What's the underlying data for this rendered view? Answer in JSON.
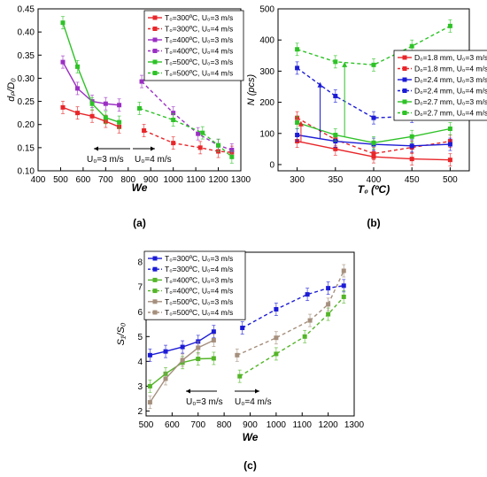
{
  "chart_data": [
    {
      "id": "a",
      "type": "line",
      "panel_label": "(a)",
      "xlabel": "We",
      "ylabel": "dₚ/D₀",
      "xlim": [
        400,
        1300
      ],
      "ylim": [
        0.1,
        0.45
      ],
      "xticks": [
        400,
        500,
        600,
        700,
        800,
        900,
        1000,
        1100,
        1200,
        1300
      ],
      "yticks": [
        0.1,
        0.15,
        0.2,
        0.25,
        0.3,
        0.35,
        0.4,
        0.45
      ],
      "tick_labels_x": [
        "400",
        "500",
        "600",
        "700",
        "800",
        "900",
        "1000",
        "1100",
        "1200",
        "1300"
      ],
      "tick_labels_y": [
        "0.10",
        "0.15",
        "0.20",
        "0.25",
        "0.30",
        "0.35",
        "0.40",
        "0.45"
      ],
      "annotations": [
        {
          "text": "U₀=3 m/s",
          "arrow": "left"
        },
        {
          "text": "U₀=4 m/s",
          "arrow": "right"
        }
      ],
      "series": [
        {
          "name": "T₀=300ºC, U₀=3 m/s",
          "color": "#e8262a",
          "dash": false,
          "x": [
            510,
            575,
            640,
            700,
            760
          ],
          "y": [
            0.237,
            0.225,
            0.218,
            0.207,
            0.195
          ]
        },
        {
          "name": "T₀=300ºC, U₀=4 m/s",
          "color": "#e8262a",
          "dash": true,
          "x": [
            870,
            1000,
            1120,
            1200,
            1260
          ],
          "y": [
            0.187,
            0.16,
            0.15,
            0.142,
            0.14
          ]
        },
        {
          "name": "T₀=400ºC, U₀=3 m/s",
          "color": "#9b2fc4",
          "dash": false,
          "x": [
            510,
            575,
            640,
            700,
            760
          ],
          "y": [
            0.335,
            0.278,
            0.25,
            0.245,
            0.242
          ]
        },
        {
          "name": "T₀=400ºC, U₀=4 m/s",
          "color": "#9b2fc4",
          "dash": true,
          "x": [
            860,
            1000,
            1110,
            1200,
            1260
          ],
          "y": [
            0.293,
            0.225,
            0.18,
            0.155,
            0.145
          ]
        },
        {
          "name": "T₀=500ºC, U₀=3 m/s",
          "color": "#2ec227",
          "dash": false,
          "x": [
            510,
            575,
            640,
            700,
            760
          ],
          "y": [
            0.42,
            0.325,
            0.245,
            0.215,
            0.205
          ]
        },
        {
          "name": "T₀=500ºC, U₀=4 m/s",
          "color": "#2ec227",
          "dash": true,
          "x": [
            850,
            1000,
            1130,
            1200,
            1260
          ],
          "y": [
            0.235,
            0.21,
            0.182,
            0.155,
            0.13
          ]
        }
      ]
    },
    {
      "id": "b",
      "type": "line",
      "panel_label": "(b)",
      "xlabel": "T₀ (ºC)",
      "ylabel": "N (pcs)",
      "xlim": [
        275,
        525
      ],
      "ylim": [
        -20,
        500
      ],
      "xticks": [
        300,
        350,
        400,
        450,
        500
      ],
      "yticks": [
        0,
        100,
        200,
        300,
        400,
        500
      ],
      "tick_labels_x": [
        "300",
        "350",
        "400",
        "450",
        "500"
      ],
      "tick_labels_y": [
        "0",
        "100",
        "200",
        "300",
        "400",
        "500"
      ],
      "series": [
        {
          "name": "D₀=1.8 mm, U₀=3 m/s",
          "color": "#e8262a",
          "dash": false,
          "x": [
            300,
            350,
            400,
            450,
            500
          ],
          "y": [
            75,
            50,
            25,
            18,
            15
          ]
        },
        {
          "name": "D₀=1.8 mm, U₀=4 m/s",
          "color": "#e8262a",
          "dash": true,
          "x": [
            300,
            350,
            400,
            450,
            500
          ],
          "y": [
            150,
            80,
            35,
            55,
            75
          ]
        },
        {
          "name": "D₀=2.4 mm, U₀=3 m/s",
          "color": "#1c1cd6",
          "dash": false,
          "x": [
            300,
            350,
            400,
            450,
            500
          ],
          "y": [
            95,
            75,
            65,
            60,
            65
          ]
        },
        {
          "name": "D₀=2.4 mm, U₀=4 m/s",
          "color": "#1c1cd6",
          "dash": true,
          "x": [
            300,
            350,
            400,
            450,
            500
          ],
          "y": [
            310,
            220,
            150,
            155,
            170
          ]
        },
        {
          "name": "D₀=2.7 mm, U₀=3 m/s",
          "color": "#2ec227",
          "dash": false,
          "x": [
            300,
            350,
            400,
            450,
            500
          ],
          "y": [
            135,
            95,
            70,
            90,
            115
          ]
        },
        {
          "name": "D₀=2.7 mm, U₀=4 m/s",
          "color": "#2ec227",
          "dash": true,
          "x": [
            300,
            350,
            400,
            450,
            500
          ],
          "y": [
            370,
            330,
            320,
            380,
            445
          ]
        }
      ],
      "arrows": [
        {
          "color": "#1c1cd6",
          "x": 330,
          "y_from": 85,
          "y_to": 265
        },
        {
          "color": "#2ec227",
          "x": 362,
          "y_from": 90,
          "y_to": 330
        },
        {
          "color": "#e8262a",
          "x": 305,
          "y_from": 70,
          "y_to": 140
        }
      ]
    },
    {
      "id": "c",
      "type": "line",
      "panel_label": "(c)",
      "xlabel": "We",
      "ylabel": "S₁/S₀",
      "xlim": [
        500,
        1300
      ],
      "ylim": [
        1.8,
        8.4
      ],
      "xticks": [
        500,
        600,
        700,
        800,
        900,
        1000,
        1100,
        1200,
        1300
      ],
      "yticks": [
        2,
        3,
        4,
        5,
        6,
        7,
        8
      ],
      "tick_labels_x": [
        "500",
        "600",
        "700",
        "800",
        "900",
        "1000",
        "1100",
        "1200",
        "1300"
      ],
      "tick_labels_y": [
        "2",
        "3",
        "4",
        "5",
        "6",
        "7",
        "8"
      ],
      "annotations": [
        {
          "text": "U₀=3 m/s",
          "arrow": "left"
        },
        {
          "text": "U₀=4 m/s",
          "arrow": "right"
        }
      ],
      "series": [
        {
          "name": "T₀=300ºC, U₀=3 m/s",
          "color": "#1c1cd6",
          "dash": false,
          "x": [
            515,
            575,
            640,
            700,
            760
          ],
          "y": [
            4.25,
            4.4,
            4.58,
            4.8,
            5.2
          ]
        },
        {
          "name": "T₀=300ºC, U₀=4 m/s",
          "color": "#1c1cd6",
          "dash": true,
          "x": [
            870,
            1000,
            1120,
            1200,
            1260
          ],
          "y": [
            5.35,
            6.1,
            6.7,
            6.95,
            7.05
          ]
        },
        {
          "name": "T₀=400ºC, U₀=3 m/s",
          "color": "#54b528",
          "dash": false,
          "x": [
            515,
            575,
            640,
            700,
            760
          ],
          "y": [
            3.0,
            3.5,
            3.95,
            4.1,
            4.12
          ]
        },
        {
          "name": "T₀=400ºC, U₀=4 m/s",
          "color": "#54b528",
          "dash": true,
          "x": [
            860,
            1000,
            1110,
            1200,
            1260
          ],
          "y": [
            3.4,
            4.3,
            5.0,
            5.9,
            6.6
          ]
        },
        {
          "name": "T₀=500ºC, U₀=3 m/s",
          "color": "#a58f7d",
          "dash": false,
          "x": [
            515,
            575,
            640,
            700,
            760
          ],
          "y": [
            2.35,
            3.3,
            4.05,
            4.55,
            4.85
          ]
        },
        {
          "name": "T₀=500ºC, U₀=4 m/s",
          "color": "#a58f7d",
          "dash": true,
          "x": [
            850,
            1000,
            1130,
            1200,
            1260
          ],
          "y": [
            4.25,
            4.95,
            5.65,
            6.3,
            7.65
          ]
        }
      ]
    }
  ]
}
